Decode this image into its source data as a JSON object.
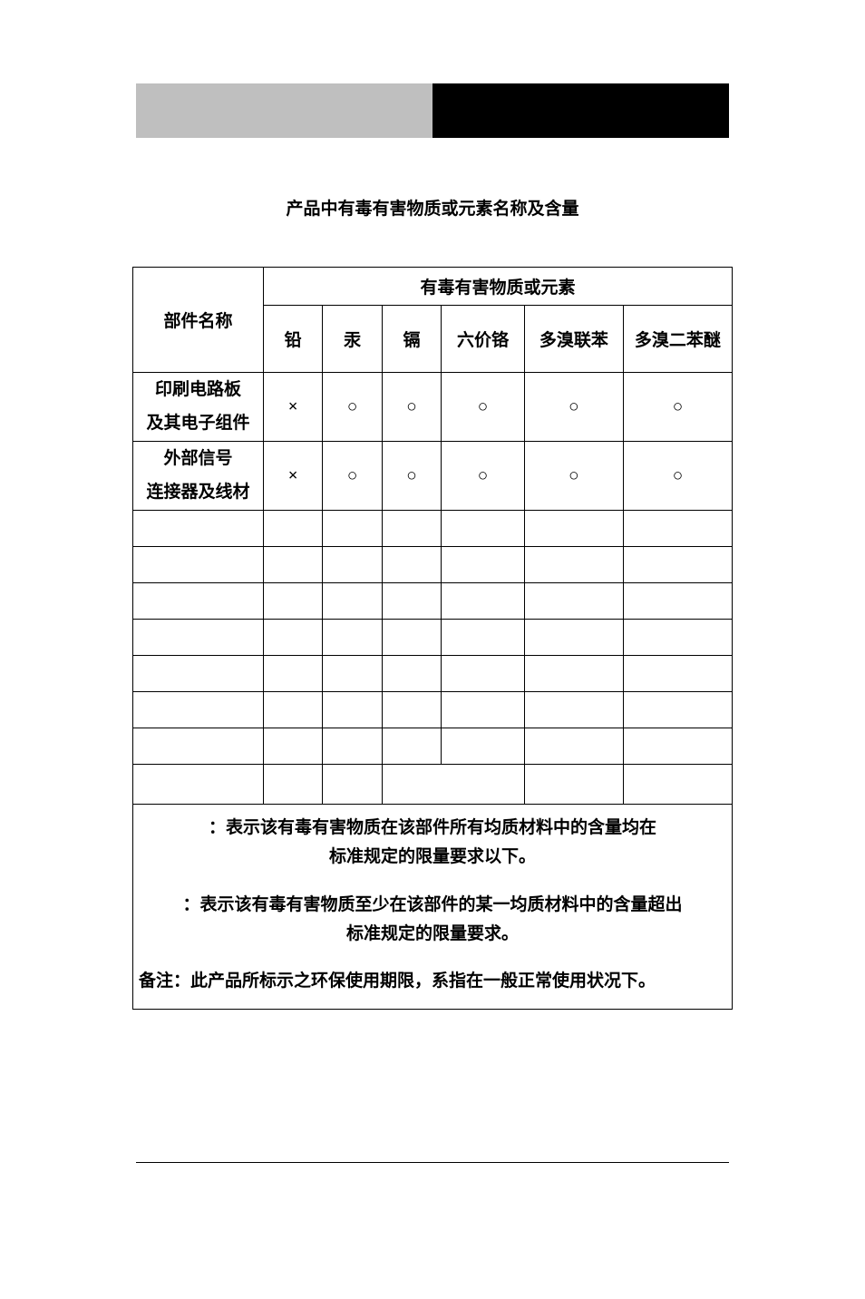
{
  "title": "产品中有毒有害物质或元素名称及含量",
  "table": {
    "group_header": "有毒有害物质或元素",
    "part_header": "部件名称",
    "sub_headers": [
      "铅",
      "汞",
      "镉",
      "六价铬",
      "多溴联苯",
      "多溴二苯醚"
    ],
    "data_rows": [
      {
        "part_line1": "印刷电路板",
        "part_line2": "及其电子组件",
        "cells": [
          "×",
          "○",
          "○",
          "○",
          "○",
          "○"
        ]
      },
      {
        "part_line1": "外部信号",
        "part_line2": "连接器及线材",
        "cells": [
          "×",
          "○",
          "○",
          "○",
          "○",
          "○"
        ]
      }
    ],
    "empty_row_count": 8
  },
  "notes": {
    "note_o_l1": "：表示该有毒有害物质在该部件所有均质材料中的含量均在",
    "note_o_l2": "标准规定的限量要求以下。",
    "note_x_l1": "：表示该有毒有害物质至少在该部件的某一均质材料中的含量超出",
    "note_x_l2": "标准规定的限量要求。",
    "remark": "备注：此产品所标示之环保使用期限，系指在一般正常使用状况下。"
  },
  "colors": {
    "page_bg": "#ffffff",
    "header_gray": "#bfbfbf",
    "header_black": "#000000",
    "border": "#000000",
    "text": "#000000"
  }
}
